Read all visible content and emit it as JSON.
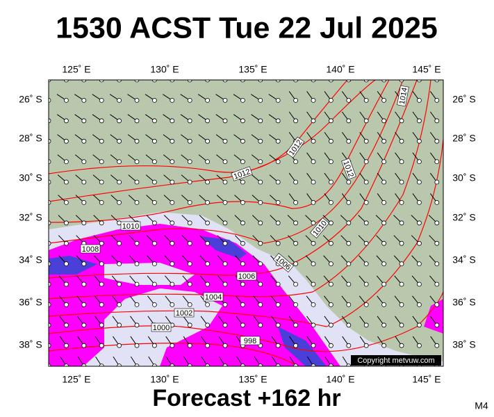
{
  "header": {
    "title": "1530 ACST Tue 22 Jul 2025"
  },
  "axes": {
    "lon_labels": [
      "125˚ E",
      "130˚ E",
      "135˚ E",
      "140˚ E",
      "145˚ E"
    ],
    "lat_labels": [
      "26˚ S",
      "28˚ S",
      "30˚ S",
      "32˚ S",
      "34˚ S",
      "36˚ S",
      "38˚ S"
    ]
  },
  "isobar_labels": [
    "1010",
    "1008",
    "1012",
    "1012",
    "1014",
    "1012",
    "1010",
    "1006",
    "1006",
    "1004",
    "1002",
    "1000",
    "998"
  ],
  "copyright": "Copyright metvuw.com",
  "footer": {
    "forecast": "Forecast +162 hr",
    "model": "M4"
  }
}
